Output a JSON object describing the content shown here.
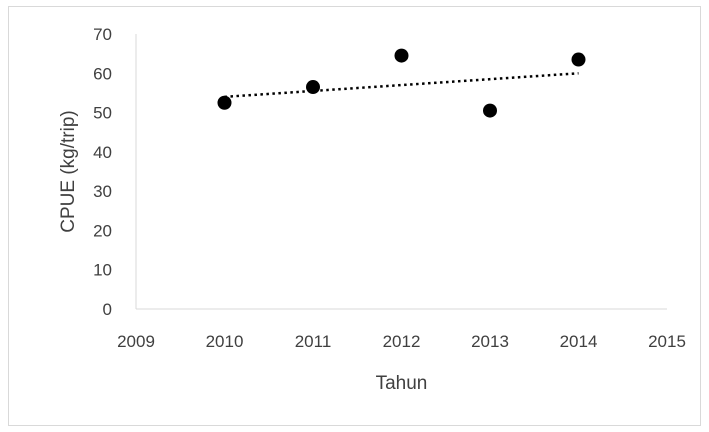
{
  "chart_data": {
    "type": "scatter",
    "title": "",
    "xlabel": "Tahun",
    "ylabel": "CPUE (kg/trip)",
    "xlim": [
      2009,
      2015
    ],
    "ylim": [
      0,
      70
    ],
    "x_ticks": [
      2009,
      2010,
      2011,
      2012,
      2013,
      2014,
      2015
    ],
    "y_ticks": [
      0,
      10,
      20,
      30,
      40,
      50,
      60,
      70
    ],
    "grid": false,
    "legend": "none",
    "series": [
      {
        "x": [
          2010,
          2011,
          2012,
          2013,
          2014
        ],
        "y": [
          52.5,
          56.5,
          64.5,
          50.5,
          63.5
        ],
        "color": "#000000"
      }
    ],
    "trendline": {
      "type": "linear",
      "x": [
        2010,
        2014
      ],
      "y": [
        54,
        60
      ],
      "color": "#000000",
      "style": "dotted"
    }
  }
}
